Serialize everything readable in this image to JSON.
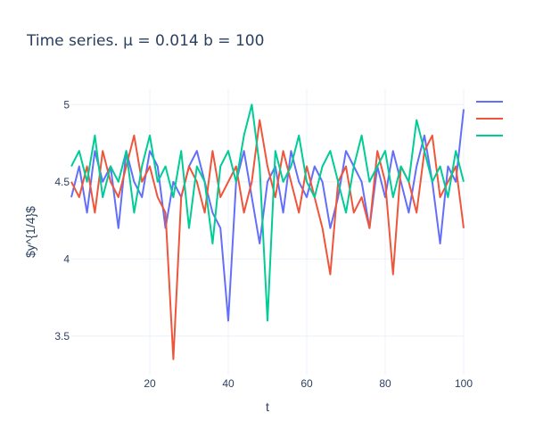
{
  "chart_data": {
    "type": "line",
    "title": "Time series. μ = 0.014 b = 100",
    "xlabel": "t",
    "ylabel": "$y^{1/4}$",
    "xlim": [
      0,
      100
    ],
    "ylim": [
      3.25,
      5.1
    ],
    "x_ticks": [
      20,
      40,
      60,
      80,
      100
    ],
    "y_ticks": [
      3.5,
      4,
      4.5,
      5
    ],
    "x_tick_labels": [
      "20",
      "40",
      "60",
      "80",
      "100"
    ],
    "y_tick_labels": [
      "3.5",
      "4",
      "4.5",
      "5"
    ],
    "grid": true,
    "legend_position": "top-right",
    "series": [
      {
        "color": "#636efa",
        "x": [
          0,
          2,
          4,
          6,
          8,
          10,
          12,
          14,
          16,
          18,
          20,
          22,
          24,
          26,
          28,
          30,
          32,
          34,
          36,
          38,
          40,
          42,
          44,
          46,
          48,
          50,
          52,
          54,
          56,
          58,
          60,
          62,
          64,
          66,
          68,
          70,
          72,
          74,
          76,
          78,
          80,
          82,
          84,
          86,
          88,
          90,
          92,
          94,
          96,
          98,
          100
        ],
        "y": [
          4.4,
          4.6,
          4.3,
          4.7,
          4.5,
          4.6,
          4.2,
          4.7,
          4.5,
          4.4,
          4.7,
          4.6,
          4.2,
          4.5,
          4.4,
          4.6,
          4.7,
          4.5,
          4.3,
          4.2,
          3.6,
          4.5,
          4.7,
          4.4,
          4.1,
          4.5,
          4.6,
          4.3,
          4.7,
          4.5,
          4.4,
          4.6,
          4.5,
          4.2,
          4.4,
          4.7,
          4.6,
          4.5,
          4.2,
          4.6,
          4.4,
          4.7,
          4.5,
          4.3,
          4.6,
          4.8,
          4.5,
          4.1,
          4.6,
          4.5,
          4.97
        ]
      },
      {
        "color": "#ef553b",
        "x": [
          0,
          2,
          4,
          6,
          8,
          10,
          12,
          14,
          16,
          18,
          20,
          22,
          24,
          26,
          28,
          30,
          32,
          34,
          36,
          38,
          40,
          42,
          44,
          46,
          48,
          50,
          52,
          54,
          56,
          58,
          60,
          62,
          64,
          66,
          68,
          70,
          72,
          74,
          76,
          78,
          80,
          82,
          84,
          86,
          88,
          90,
          92,
          94,
          96,
          98,
          100
        ],
        "y": [
          4.5,
          4.4,
          4.6,
          4.3,
          4.7,
          4.5,
          4.4,
          4.6,
          4.8,
          4.5,
          4.6,
          4.4,
          4.3,
          3.35,
          4.4,
          4.6,
          4.5,
          4.3,
          4.7,
          4.4,
          4.5,
          4.6,
          4.3,
          4.5,
          4.9,
          4.6,
          4.4,
          4.7,
          4.5,
          4.3,
          4.6,
          4.4,
          4.2,
          3.9,
          4.5,
          4.6,
          4.3,
          4.4,
          4.2,
          4.7,
          4.5,
          3.9,
          4.6,
          4.5,
          4.3,
          4.7,
          4.8,
          4.4,
          4.5,
          4.6,
          4.2
        ]
      },
      {
        "color": "#00cc96",
        "x": [
          0,
          2,
          4,
          6,
          8,
          10,
          12,
          14,
          16,
          18,
          20,
          22,
          24,
          26,
          28,
          30,
          32,
          34,
          36,
          38,
          40,
          42,
          44,
          46,
          48,
          50,
          52,
          54,
          56,
          58,
          60,
          62,
          64,
          66,
          68,
          70,
          72,
          74,
          76,
          78,
          80,
          82,
          84,
          86,
          88,
          90,
          92,
          94,
          96,
          98,
          100
        ],
        "y": [
          4.6,
          4.7,
          4.5,
          4.8,
          4.4,
          4.6,
          4.5,
          4.7,
          4.3,
          4.6,
          4.8,
          4.5,
          4.6,
          4.4,
          4.7,
          4.2,
          4.6,
          4.5,
          4.1,
          4.6,
          4.7,
          4.5,
          4.8,
          5.0,
          4.6,
          3.6,
          4.7,
          4.5,
          4.6,
          4.8,
          4.5,
          4.4,
          4.6,
          4.7,
          4.5,
          4.3,
          4.6,
          4.8,
          4.5,
          4.6,
          4.7,
          4.4,
          4.6,
          4.5,
          4.9,
          4.7,
          4.5,
          4.6,
          4.4,
          4.7,
          4.5
        ]
      }
    ]
  }
}
